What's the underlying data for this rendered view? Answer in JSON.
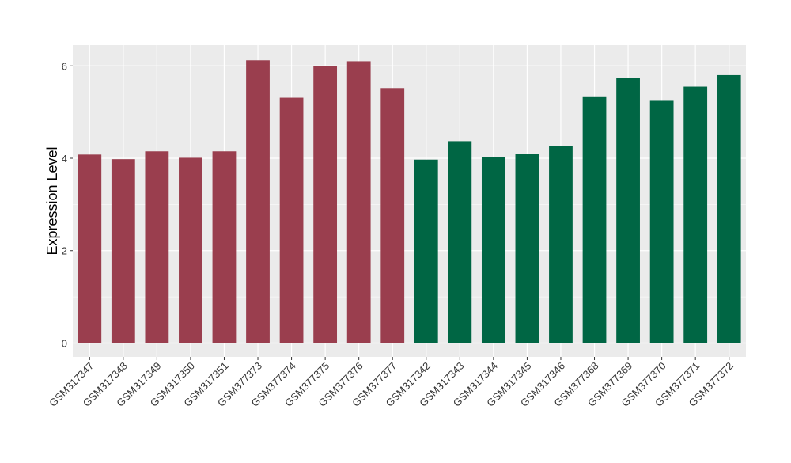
{
  "chart_data": {
    "type": "bar",
    "title": "",
    "xlabel": "",
    "ylabel": "Expression Level",
    "ylim": [
      -0.3,
      6.45
    ],
    "yticks": [
      0,
      2,
      4,
      6
    ],
    "grid": true,
    "legend": "none",
    "colors": {
      "group1": "#9a3e4e",
      "group2": "#006644",
      "panel": "#ebebeb",
      "grid": "#ffffff"
    },
    "categories": [
      "GSM317347",
      "GSM317348",
      "GSM317349",
      "GSM317350",
      "GSM317351",
      "GSM377373",
      "GSM377374",
      "GSM377375",
      "GSM377376",
      "GSM377377",
      "GSM317342",
      "GSM317343",
      "GSM317344",
      "GSM317345",
      "GSM317346",
      "GSM377368",
      "GSM377369",
      "GSM377370",
      "GSM377371",
      "GSM377372"
    ],
    "values": [
      4.08,
      3.98,
      4.15,
      4.01,
      4.15,
      6.12,
      5.31,
      6.0,
      6.1,
      5.52,
      3.97,
      4.37,
      4.03,
      4.1,
      4.27,
      5.34,
      5.74,
      5.26,
      5.55,
      5.8
    ],
    "bar_groups": [
      "group1",
      "group1",
      "group1",
      "group1",
      "group1",
      "group1",
      "group1",
      "group1",
      "group1",
      "group1",
      "group2",
      "group2",
      "group2",
      "group2",
      "group2",
      "group2",
      "group2",
      "group2",
      "group2",
      "group2"
    ]
  }
}
